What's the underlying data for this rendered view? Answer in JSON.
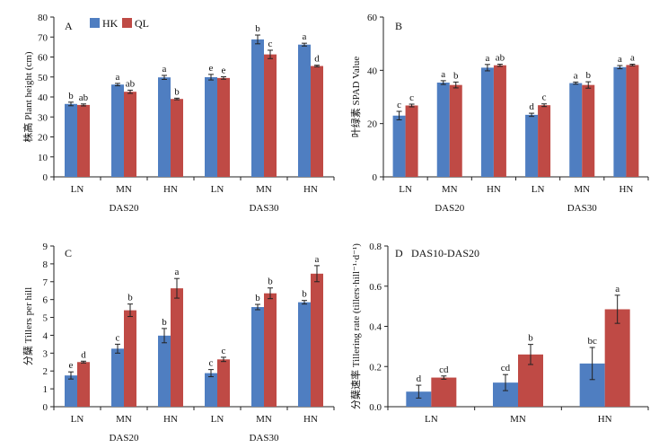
{
  "legend": {
    "hk_label": "HK",
    "ql_label": "QL"
  },
  "colors": {
    "HK": "#4f7ec1",
    "QL": "#bf4a45"
  },
  "chart_data": [
    {
      "type": "bar",
      "panel_label": "A",
      "ylabel": "株高 Plant height (cm)",
      "ylim": [
        0,
        80
      ],
      "yticks": [
        0,
        10,
        20,
        30,
        40,
        50,
        60,
        70,
        80
      ],
      "categories": [
        "LN",
        "MN",
        "HN",
        "LN",
        "MN",
        "HN"
      ],
      "group_labels": [
        "DAS20",
        "DAS30"
      ],
      "series": [
        {
          "name": "HK",
          "values": [
            36.5,
            46.2,
            49.8,
            49.9,
            68.8,
            66.2
          ],
          "errors": [
            0.9,
            0.6,
            1.0,
            1.4,
            2.2,
            0.7
          ],
          "letters": [
            "b",
            "a",
            "a",
            "e",
            "b",
            "a"
          ]
        },
        {
          "name": "QL",
          "values": [
            36.0,
            42.6,
            39.0,
            49.5,
            61.3,
            55.5
          ],
          "errors": [
            0.5,
            0.8,
            0.4,
            0.6,
            2.1,
            0.4
          ],
          "letters": [
            "ab",
            "ab",
            "b",
            "e",
            "c",
            "d"
          ]
        }
      ]
    },
    {
      "type": "bar",
      "panel_label": "B",
      "ylabel": "叶绿素 SPAD Value",
      "ylim": [
        0,
        60
      ],
      "yticks": [
        0,
        20,
        40,
        60
      ],
      "categories": [
        "LN",
        "MN",
        "HN",
        "LN",
        "MN",
        "HN"
      ],
      "group_labels": [
        "DAS20",
        "DAS30"
      ],
      "series": [
        {
          "name": "HK",
          "values": [
            23.0,
            35.4,
            41.0,
            23.3,
            35.2,
            41.2
          ],
          "errors": [
            1.6,
            0.7,
            1.2,
            0.6,
            0.4,
            0.6
          ],
          "letters": [
            "c",
            "a",
            "a",
            "d",
            "a",
            "a"
          ]
        },
        {
          "name": "QL",
          "values": [
            26.8,
            34.5,
            41.9,
            26.9,
            34.5,
            42.0
          ],
          "errors": [
            0.5,
            1.1,
            0.4,
            0.5,
            1.2,
            0.3
          ],
          "letters": [
            "c",
            "b",
            "ab",
            "c",
            "b",
            "a"
          ]
        }
      ]
    },
    {
      "type": "bar",
      "panel_label": "C",
      "ylabel": "分蘖 Tillers per hill",
      "ylim": [
        0,
        9
      ],
      "yticks": [
        0,
        1,
        2,
        3,
        4,
        5,
        6,
        7,
        8,
        9
      ],
      "categories": [
        "LN",
        "MN",
        "HN",
        "LN",
        "MN",
        "HN"
      ],
      "group_labels": [
        "DAS20",
        "DAS30"
      ],
      "series": [
        {
          "name": "HK",
          "values": [
            1.75,
            3.25,
            3.98,
            1.88,
            5.58,
            5.85
          ],
          "errors": [
            0.2,
            0.25,
            0.4,
            0.2,
            0.15,
            0.1
          ],
          "letters": [
            "e",
            "c",
            "b",
            "c",
            "b",
            "b"
          ]
        },
        {
          "name": "QL",
          "values": [
            2.5,
            5.4,
            6.63,
            2.65,
            6.35,
            7.45
          ],
          "errors": [
            0.05,
            0.35,
            0.55,
            0.12,
            0.3,
            0.45
          ],
          "letters": [
            "d",
            "b",
            "a",
            "c",
            "b",
            "a"
          ]
        }
      ]
    },
    {
      "type": "bar",
      "panel_label": "D",
      "title": "DAS10-DAS20",
      "ylabel": "分蘖速率 Tillering rate (tillers·hill⁻¹·d⁻¹)",
      "ylim": [
        0,
        0.8
      ],
      "yticks": [
        0,
        0.2,
        0.4,
        0.6,
        0.8
      ],
      "categories": [
        "LN",
        "MN",
        "HN"
      ],
      "series": [
        {
          "name": "HK",
          "values": [
            0.075,
            0.12,
            0.215
          ],
          "errors": [
            0.032,
            0.04,
            0.08
          ],
          "letters": [
            "d",
            "cd",
            "bc"
          ]
        },
        {
          "name": "QL",
          "values": [
            0.145,
            0.26,
            0.485
          ],
          "errors": [
            0.008,
            0.05,
            0.07
          ],
          "letters": [
            "cd",
            "b",
            "a"
          ]
        }
      ]
    }
  ]
}
